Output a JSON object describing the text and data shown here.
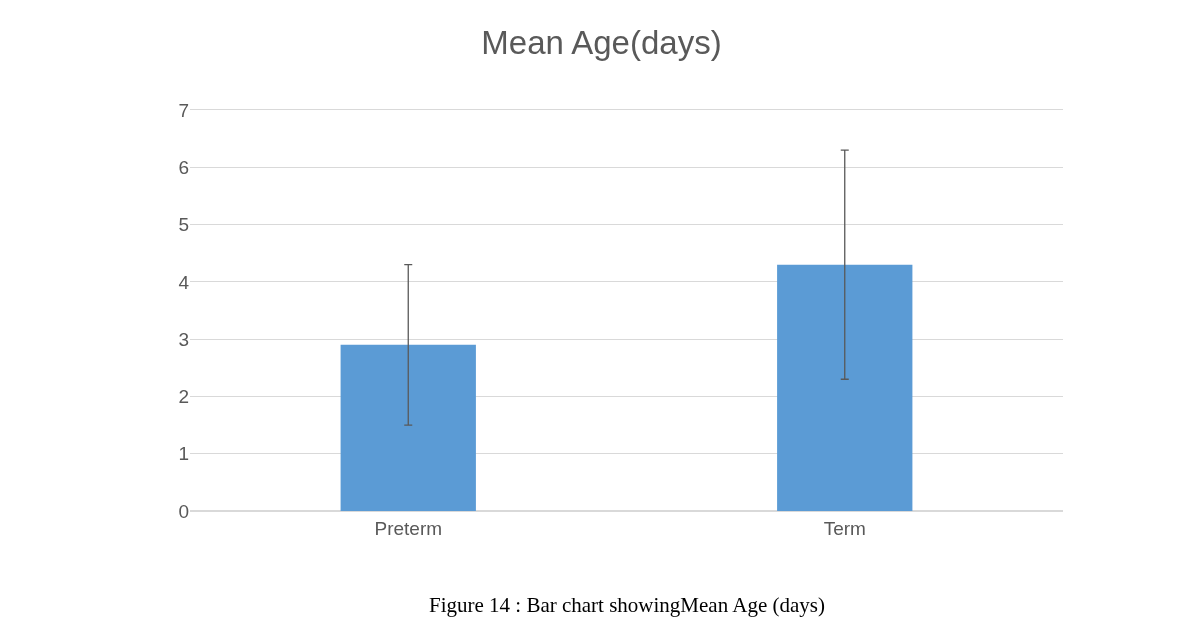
{
  "chart_data": {
    "type": "bar",
    "title": "Mean Age(days)",
    "categories": [
      "Preterm",
      "Term"
    ],
    "values": [
      2.9,
      4.3
    ],
    "errors": [
      1.4,
      2.0
    ],
    "color": "#5b9bd5",
    "ylim": [
      0,
      7
    ],
    "yticks": [
      0,
      1,
      2,
      3,
      4,
      5,
      6,
      7
    ],
    "grid": "y",
    "annotations": [
      "Figure 14 : Bar chart showingMean Age (days)"
    ]
  }
}
